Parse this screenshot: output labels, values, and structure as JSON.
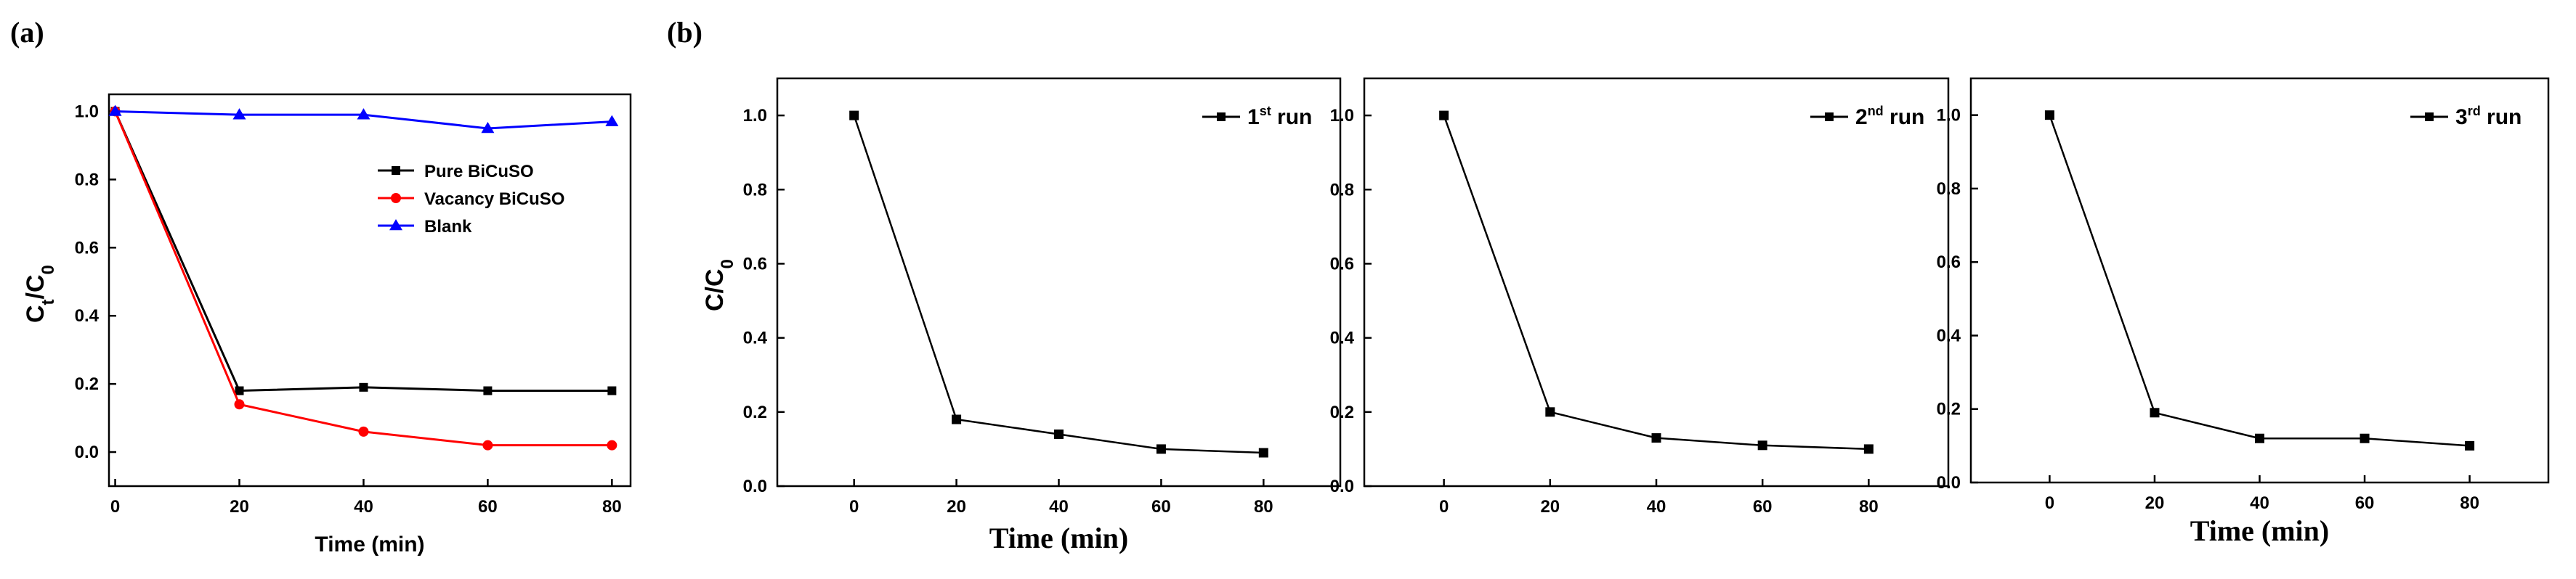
{
  "panels": [
    {
      "label": "(a)"
    },
    {
      "label": "(b)"
    }
  ],
  "chart_data": [
    {
      "type": "line",
      "x": [
        0,
        20,
        40,
        60,
        80
      ],
      "xlabel": "Time (min)",
      "ylabel": "Ct/C0",
      "ylabel_main": "C",
      "ylabel_sub1": "t",
      "ylabel_mid": "/C",
      "ylabel_sub2": "0",
      "xlim": [
        -1,
        83
      ],
      "ylim": [
        -0.1,
        1.05
      ],
      "xticks": [
        "0",
        "20",
        "40",
        "60",
        "80"
      ],
      "yticks": [
        "0.0",
        "0.2",
        "0.4",
        "0.6",
        "0.8",
        "1.0"
      ],
      "legend_position": "center-right",
      "series": [
        {
          "name": "Pure BiCuSO",
          "color": "#000000",
          "marker": "square",
          "values": [
            1.0,
            0.18,
            0.19,
            0.18,
            0.18
          ]
        },
        {
          "name": "Vacancy BiCuSO",
          "color": "#ff0000",
          "marker": "circle",
          "values": [
            1.0,
            0.14,
            0.06,
            0.02,
            0.02
          ]
        },
        {
          "name": "Blank",
          "color": "#0000ff",
          "marker": "triangle",
          "values": [
            1.0,
            0.99,
            0.99,
            0.95,
            0.97
          ]
        }
      ]
    },
    {
      "type": "line",
      "x": [
        0,
        20,
        40,
        60,
        80
      ],
      "xlabel": "Time (min)",
      "ylabel": "C/C0",
      "ylabel_main": "C/C",
      "ylabel_sub": "0",
      "xlim": [
        -15,
        95
      ],
      "ylim": [
        0,
        1.1
      ],
      "xticks": [
        "0",
        "20",
        "40",
        "60",
        "80"
      ],
      "yticks": [
        "0.0",
        "0.2",
        "0.4",
        "0.6",
        "0.8",
        "1.0"
      ],
      "legend_position": "top-right",
      "series": [
        {
          "name": "1st run",
          "name_main": "1",
          "name_sup": "st",
          "name_tail": " run",
          "color": "#000000",
          "marker": "square",
          "values": [
            1.0,
            0.18,
            0.14,
            0.1,
            0.09
          ]
        }
      ]
    },
    {
      "type": "line",
      "x": [
        0,
        20,
        40,
        60,
        80
      ],
      "xlabel": "",
      "ylabel": "",
      "xlim": [
        -15,
        95
      ],
      "ylim": [
        0,
        1.1
      ],
      "xticks": [
        "0",
        "20",
        "40",
        "60",
        "80"
      ],
      "yticks": [
        "0.0",
        "0.2",
        "0.4",
        "0.6",
        "0.8",
        "1.0"
      ],
      "legend_position": "top-right",
      "series": [
        {
          "name": "2nd run",
          "name_main": "2",
          "name_sup": "nd",
          "name_tail": " run",
          "color": "#000000",
          "marker": "square",
          "values": [
            1.0,
            0.2,
            0.13,
            0.11,
            0.1
          ]
        }
      ]
    },
    {
      "type": "line",
      "x": [
        0,
        20,
        40,
        60,
        80
      ],
      "xlabel": "Time (min)",
      "ylabel": "",
      "xlim": [
        -15,
        95
      ],
      "ylim": [
        0,
        1.1
      ],
      "xticks": [
        "0",
        "20",
        "40",
        "60",
        "80"
      ],
      "yticks": [
        "0.0",
        "0.2",
        "0.4",
        "0.6",
        "0.8",
        "1.0"
      ],
      "legend_position": "top-right",
      "series": [
        {
          "name": "3rd run",
          "name_main": "3",
          "name_sup": "rd",
          "name_tail": " run",
          "color": "#000000",
          "marker": "square",
          "values": [
            1.0,
            0.19,
            0.12,
            0.12,
            0.1
          ]
        }
      ]
    }
  ]
}
